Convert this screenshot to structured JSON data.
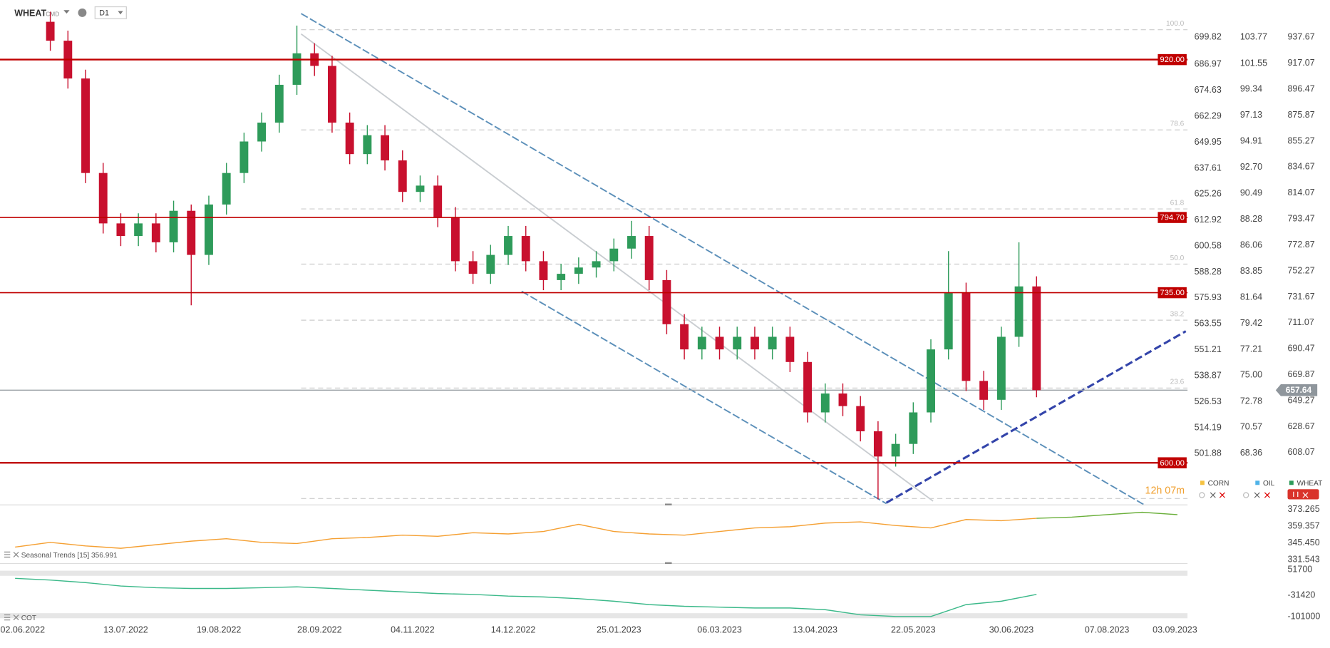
{
  "chart_data": {
    "type": "candlestick",
    "symbol": "WHEAT",
    "market": "CMD",
    "timeframe": "D1",
    "countdown": "12h 07m",
    "up_color": "#2e9b5a",
    "down_color": "#c8102e",
    "x": [
      "2022-06-13",
      "2022-06-20",
      "2022-06-27",
      "2022-07-04",
      "2022-07-11",
      "2022-07-18",
      "2022-07-25",
      "2022-08-01",
      "2022-08-08",
      "2022-08-15",
      "2022-08-22",
      "2022-08-29",
      "2022-09-05",
      "2022-09-12",
      "2022-09-19",
      "2022-09-26",
      "2022-10-03",
      "2022-10-10",
      "2022-10-17",
      "2022-10-24",
      "2022-10-31",
      "2022-11-07",
      "2022-11-14",
      "2022-11-21",
      "2022-11-28",
      "2022-12-05",
      "2022-12-12",
      "2022-12-19",
      "2022-12-26",
      "2023-01-02",
      "2023-01-09",
      "2023-01-16",
      "2023-01-23",
      "2023-01-30",
      "2023-02-06",
      "2023-02-13",
      "2023-02-20",
      "2023-02-27",
      "2023-03-06",
      "2023-03-13",
      "2023-03-20",
      "2023-03-27",
      "2023-04-03",
      "2023-04-10",
      "2023-04-17",
      "2023-04-24",
      "2023-05-01",
      "2023-05-08",
      "2023-05-15",
      "2023-05-22",
      "2023-05-29",
      "2023-06-05",
      "2023-06-12",
      "2023-06-19",
      "2023-06-26",
      "2023-07-03",
      "2023-07-10"
    ],
    "open": [
      950,
      935,
      905,
      830,
      790,
      780,
      790,
      775,
      800,
      765,
      805,
      830,
      855,
      870,
      900,
      925,
      915,
      870,
      845,
      860,
      840,
      815,
      820,
      795,
      760,
      750,
      765,
      780,
      760,
      745,
      750,
      755,
      760,
      770,
      780,
      745,
      710,
      690,
      700,
      690,
      700,
      690,
      700,
      680,
      640,
      655,
      645,
      625,
      605,
      615,
      640,
      690,
      735,
      665,
      650,
      700,
      740
    ],
    "high": [
      958,
      943,
      912,
      838,
      798,
      798,
      798,
      808,
      805,
      812,
      838,
      862,
      878,
      908,
      947,
      933,
      923,
      878,
      868,
      868,
      848,
      828,
      828,
      803,
      768,
      773,
      788,
      788,
      768,
      758,
      763,
      768,
      778,
      792,
      788,
      753,
      718,
      708,
      708,
      708,
      708,
      708,
      708,
      688,
      663,
      663,
      653,
      633,
      623,
      648,
      698,
      768,
      743,
      673,
      708,
      775,
      748
    ],
    "low": [
      927,
      897,
      822,
      782,
      772,
      772,
      767,
      767,
      725,
      757,
      797,
      822,
      847,
      862,
      892,
      907,
      862,
      837,
      837,
      832,
      807,
      807,
      787,
      752,
      742,
      742,
      757,
      752,
      737,
      737,
      742,
      747,
      752,
      762,
      737,
      702,
      682,
      682,
      682,
      682,
      682,
      682,
      672,
      632,
      632,
      637,
      617,
      571,
      597,
      607,
      632,
      682,
      657,
      642,
      642,
      692,
      652
    ],
    "close": [
      935,
      905,
      830,
      790,
      780,
      790,
      775,
      800,
      765,
      805,
      830,
      855,
      870,
      900,
      925,
      915,
      870,
      845,
      860,
      840,
      815,
      820,
      795,
      760,
      750,
      765,
      780,
      760,
      745,
      750,
      755,
      760,
      770,
      780,
      745,
      710,
      690,
      700,
      690,
      700,
      690,
      700,
      680,
      640,
      655,
      645,
      625,
      605,
      615,
      640,
      690,
      735,
      665,
      650,
      700,
      740,
      657.64
    ],
    "last_price": 657.64,
    "xlim": [
      "2022-05-24",
      "2023-09-08"
    ],
    "xticks": [
      {
        "value": "2022-06-02",
        "label": "02.06.2022"
      },
      {
        "value": "2022-07-13",
        "label": "13.07.2022"
      },
      {
        "value": "2022-08-19",
        "label": "19.08.2022"
      },
      {
        "value": "2022-09-28",
        "label": "28.09.2022"
      },
      {
        "value": "2022-11-04",
        "label": "04.11.2022"
      },
      {
        "value": "2022-12-14",
        "label": "14.12.2022"
      },
      {
        "value": "2023-01-25",
        "label": "25.01.2023"
      },
      {
        "value": "2023-03-06",
        "label": "06.03.2023"
      },
      {
        "value": "2023-04-13",
        "label": "13.04.2023"
      },
      {
        "value": "2023-05-22",
        "label": "22.05.2023"
      },
      {
        "value": "2023-06-30",
        "label": "30.06.2023"
      },
      {
        "value": "2023-08-07",
        "label": "07.08.2023"
      },
      {
        "value": "2023-09-03",
        "label": "03.09.2023"
      }
    ],
    "ylim": [
      567.6,
      967.3
    ],
    "yticks": [
      937.67,
      917.07,
      896.47,
      875.87,
      855.27,
      834.67,
      814.07,
      793.47,
      772.87,
      752.27,
      731.67,
      711.07,
      690.47,
      669.87,
      649.27,
      628.67,
      608.07
    ],
    "corn_axis": {
      "ylim": [
        478.13,
        717.59
      ],
      "ticks": [
        699.82,
        686.97,
        674.63,
        662.29,
        649.95,
        637.61,
        625.26,
        612.92,
        600.58,
        588.28,
        575.93,
        563.55,
        551.21,
        538.87,
        526.53,
        514.19,
        501.88
      ]
    },
    "oil_axis": {
      "ylim": [
        64.07,
        106.95
      ],
      "ticks": [
        103.77,
        101.55,
        99.34,
        97.13,
        94.91,
        {
          "value": 92.7,
          "label": "92.70"
        },
        90.49,
        88.28,
        86.06,
        83.85,
        81.64,
        79.42,
        77.21,
        {
          "value": 75,
          "label": "75.00"
        },
        72.78,
        70.57,
        68.36
      ]
    },
    "levels": [
      {
        "value": 920,
        "label": "920.00"
      },
      {
        "value": 794.7,
        "label": "794.70"
      },
      {
        "value": 735,
        "label": "735.00"
      },
      {
        "value": 600,
        "label": "600.00"
      }
    ],
    "level_color": "#c00000",
    "fib_levels": [
      {
        "label": "100.0",
        "price": 943.7
      },
      {
        "label": "78.6",
        "price": 864.2
      },
      {
        "label": "61.8",
        "price": 801.5
      },
      {
        "label": "50.0",
        "price": 757.7
      },
      {
        "label": "38.2",
        "price": 713.2
      },
      {
        "label": "23.6",
        "price": 659.3
      }
    ],
    "legend": [
      {
        "name": "CORN",
        "color": "#f5c242"
      },
      {
        "name": "OIL",
        "color": "#4fb3e8"
      },
      {
        "name": "WHEAT",
        "color": "#2e9b5a"
      }
    ],
    "seasonal": {
      "title": "Seasonal  Trends [15] 356.991",
      "ylim": [
        329.43,
        375.39
      ],
      "yticks": [
        373.265,
        359.357,
        {
          "value": 345.45,
          "label": "345.450"
        },
        331.543
      ],
      "x": [
        "2022-05-30",
        "2022-06-13",
        "2022-06-27",
        "2022-07-11",
        "2022-07-25",
        "2022-08-08",
        "2022-08-22",
        "2022-09-05",
        "2022-09-19",
        "2022-10-03",
        "2022-10-17",
        "2022-10-31",
        "2022-11-14",
        "2022-11-28",
        "2022-12-12",
        "2022-12-26",
        "2023-01-09",
        "2023-01-23",
        "2023-02-06",
        "2023-02-20",
        "2023-03-06",
        "2023-03-20",
        "2023-04-03",
        "2023-04-17",
        "2023-05-01",
        "2023-05-15",
        "2023-05-29",
        "2023-06-12",
        "2023-06-26",
        "2023-07-10",
        "2023-07-24",
        "2023-08-07",
        "2023-08-21",
        "2023-09-04"
      ],
      "series": [
        {
          "color": "#f5a033",
          "values": [
            342,
            346,
            343,
            341,
            344,
            347,
            349,
            346,
            345,
            349,
            350,
            352,
            351,
            354,
            353,
            355,
            361,
            355,
            353,
            352,
            355,
            358,
            359,
            362,
            363,
            360,
            358,
            365,
            364,
            366,
            null,
            null,
            null,
            null
          ]
        },
        {
          "color": "#6aaf3a",
          "values": [
            null,
            null,
            null,
            null,
            null,
            null,
            null,
            null,
            null,
            null,
            null,
            null,
            null,
            null,
            null,
            null,
            null,
            null,
            null,
            null,
            null,
            null,
            null,
            null,
            null,
            null,
            null,
            null,
            null,
            366,
            367,
            369,
            371,
            369
          ]
        }
      ]
    },
    "cot": {
      "title": "COT",
      "color": "#3cb98a",
      "ylim": [
        -106190,
        60010
      ],
      "yticks": [
        51700,
        -31420,
        -101000
      ],
      "x": [
        "2022-05-30",
        "2022-06-13",
        "2022-06-27",
        "2022-07-11",
        "2022-07-25",
        "2022-08-08",
        "2022-08-22",
        "2022-09-05",
        "2022-09-19",
        "2022-10-03",
        "2022-10-17",
        "2022-10-31",
        "2022-11-14",
        "2022-11-28",
        "2022-12-12",
        "2022-12-26",
        "2023-01-09",
        "2023-01-23",
        "2023-02-06",
        "2023-02-20",
        "2023-03-06",
        "2023-03-20",
        "2023-04-03",
        "2023-04-17",
        "2023-05-01",
        "2023-05-15",
        "2023-05-29",
        "2023-06-12",
        "2023-06-26",
        "2023-07-10"
      ],
      "values": [
        24000,
        18500,
        10100,
        -900,
        -6400,
        -9100,
        -9100,
        -6400,
        -3600,
        -9100,
        -14600,
        -20100,
        -25700,
        -28400,
        -33900,
        -36700,
        -42200,
        -50500,
        -61600,
        -67100,
        -69900,
        -72600,
        -72600,
        -78200,
        -94800,
        -100300,
        -100300,
        -61600,
        -50500,
        -28400
      ]
    }
  }
}
